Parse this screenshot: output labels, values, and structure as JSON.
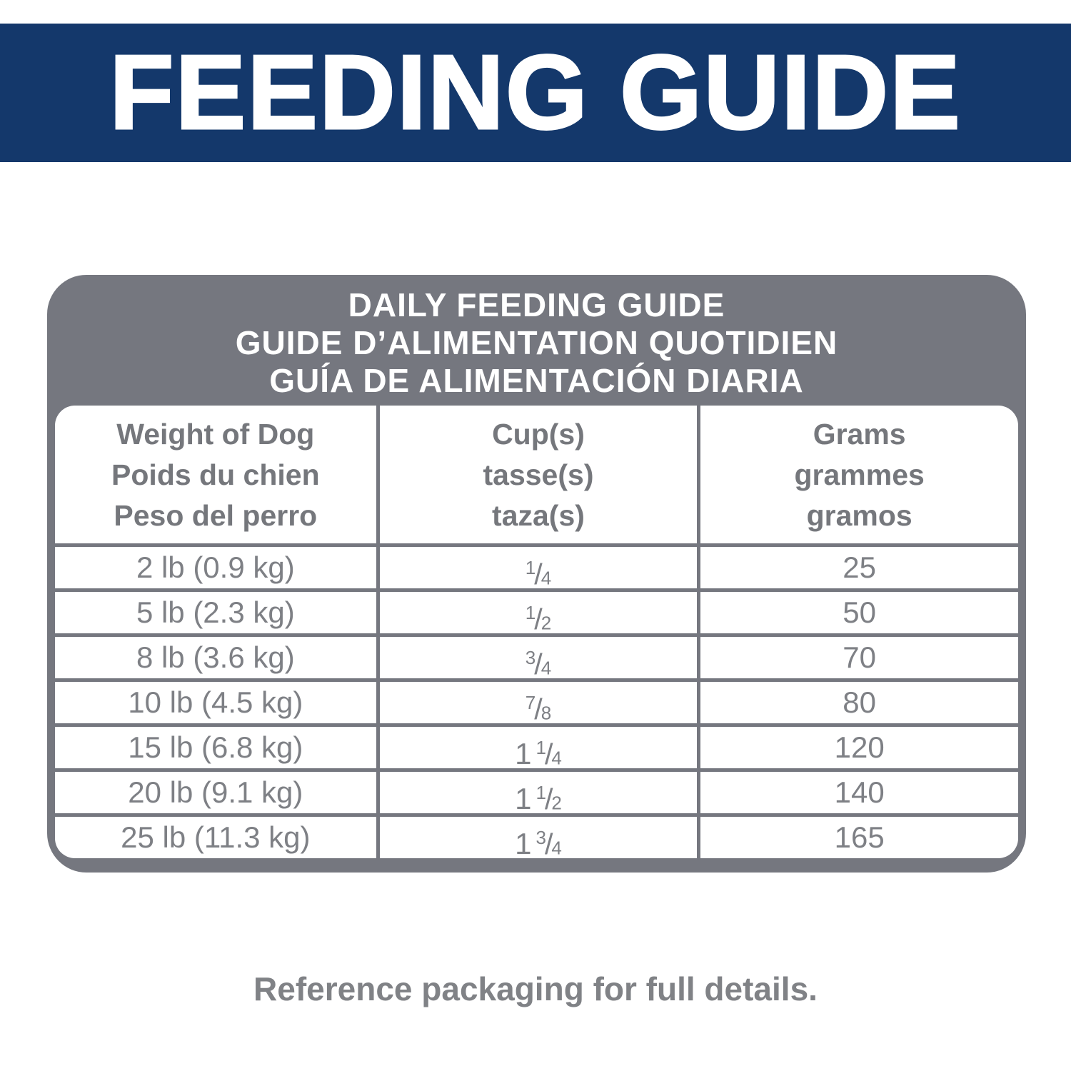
{
  "banner": {
    "title": "FEEDING GUIDE",
    "bg_color": "#14386B",
    "text_color": "#FFFFFF"
  },
  "card": {
    "frame_color": "#75777F",
    "title_lines": [
      "DAILY FEEDING GUIDE",
      "GUIDE D’ALIMENTATION QUOTIDIEN",
      "GUÍA DE ALIMENTACIÓN DIARIA"
    ],
    "columns": [
      {
        "en": "Weight of Dog",
        "fr": "Poids du chien",
        "es": "Peso del perro"
      },
      {
        "en": "Cup(s)",
        "fr": "tasse(s)",
        "es": "taza(s)"
      },
      {
        "en": "Grams",
        "fr": "grammes",
        "es": "gramos"
      }
    ],
    "rows": [
      {
        "weight": "2 lb (0.9 kg)",
        "cups": "1/4",
        "grams": "25"
      },
      {
        "weight": "5 lb (2.3 kg)",
        "cups": "1/2",
        "grams": "50"
      },
      {
        "weight": "8 lb (3.6 kg)",
        "cups": "3/4",
        "grams": "70"
      },
      {
        "weight": "10 lb (4.5 kg)",
        "cups": "7/8",
        "grams": "80"
      },
      {
        "weight": "15 lb (6.8 kg)",
        "cups": "1 1/4",
        "grams": "120"
      },
      {
        "weight": "20 lb (9.1 kg)",
        "cups": "1 1/2",
        "grams": "140"
      },
      {
        "weight": "25 lb (11.3 kg)",
        "cups": "1 3/4",
        "grams": "165"
      }
    ],
    "text_color": "#7E8085"
  },
  "footer": {
    "note": "Reference packaging for full details."
  }
}
